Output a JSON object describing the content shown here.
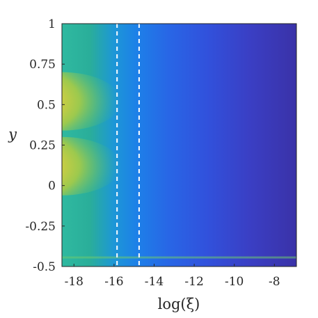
{
  "chart_data": {
    "type": "heatmap",
    "title": "",
    "xlabel": "log(ξ)",
    "ylabel": "y",
    "xlim": [
      -18.6,
      -6.9
    ],
    "ylim": [
      -0.5,
      1
    ],
    "xticks": [
      -18,
      -16,
      -14,
      -12,
      -10,
      -8
    ],
    "xtick_labels": [
      "-18",
      "-16",
      "-14",
      "-12",
      "-10",
      "-8"
    ],
    "yticks": [
      -0.5,
      -0.25,
      0,
      0.25,
      0.5,
      0.75,
      1
    ],
    "ytick_labels": [
      "-0.5",
      "-0.25",
      "0",
      "0.25",
      "0.5",
      "0.75",
      "1"
    ],
    "colormap": "parula",
    "vertical_lines": [
      -15.85,
      -14.75
    ],
    "vertical_line_style": "dashed",
    "vertical_line_color": "#ffffff",
    "hotspots": [
      {
        "x_center": -18.6,
        "y_center": 0.52,
        "intensity": "high"
      },
      {
        "x_center": -18.6,
        "y_center": 0.12,
        "intensity": "high"
      }
    ],
    "grid": false
  }
}
